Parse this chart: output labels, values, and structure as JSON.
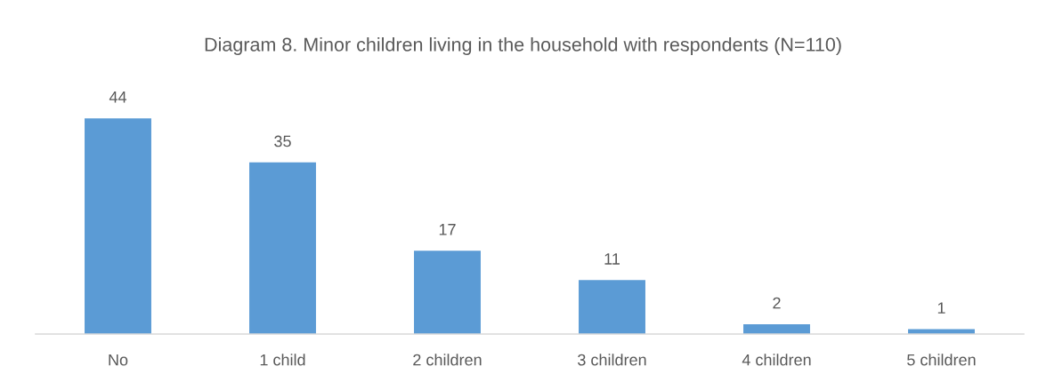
{
  "chart_data": {
    "type": "bar",
    "title": "Diagram 8. Minor children living in the household with respondents (N=110)",
    "categories": [
      "No",
      "1 child",
      "2 children",
      "3 children",
      "4 children",
      "5 children"
    ],
    "values": [
      44,
      35,
      17,
      11,
      2,
      1
    ],
    "color": "#5b9bd5",
    "tick_labels": "x",
    "data_labels": true
  }
}
